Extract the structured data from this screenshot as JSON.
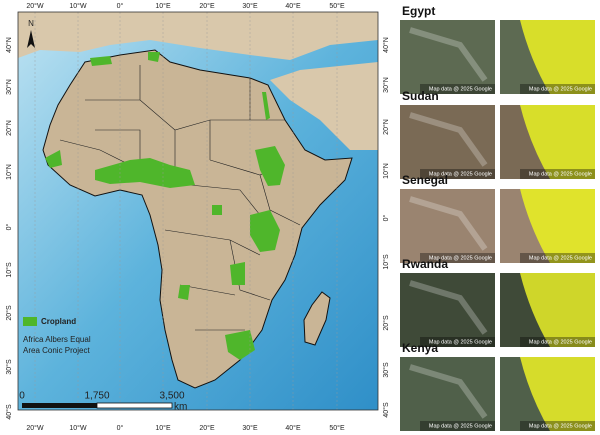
{
  "map": {
    "graticule": {
      "top": [
        "20°W",
        "10°W",
        "0°",
        "10°E",
        "20°E",
        "30°E",
        "40°E",
        "50°E"
      ],
      "bottom": [
        "20°W",
        "10°W",
        "0°",
        "10°E",
        "20°E",
        "30°E",
        "40°E",
        "50°E"
      ],
      "left": [
        "40°N",
        "30°N",
        "20°N",
        "10°N",
        "0°",
        "10°S",
        "20°S",
        "30°S",
        "40°S"
      ],
      "right": [
        "40°N",
        "30°N",
        "20°N",
        "10°N",
        "0°",
        "10°S",
        "20°S",
        "30°S",
        "40°S"
      ]
    },
    "north": "N",
    "legend": "Cropland",
    "projection": [
      "Africa Albers Equal",
      "Area Conic Project"
    ],
    "scale": [
      "0",
      "1,750",
      "3,500"
    ],
    "scale_unit": "km"
  },
  "panels": [
    {
      "country": "Egypt",
      "credits": [
        "Map data @ 2025 Google",
        "Map data @ 2025 Google"
      ]
    },
    {
      "country": "Sudan",
      "credits": [
        "Map data @ 2025 Google",
        "Map data @ 2025 Google"
      ]
    },
    {
      "country": "Senegal",
      "credits": [
        "Map data @ 2025 Google",
        "Map data @ 2025 Google"
      ]
    },
    {
      "country": "Rwanda",
      "credits": [
        "Map data @ 2025 Google",
        "Map data @ 2025 Google"
      ]
    },
    {
      "country": "Kenya",
      "credits": [
        "Map data @ 2025 Google",
        "Map data @ 2025 Google"
      ]
    }
  ]
}
